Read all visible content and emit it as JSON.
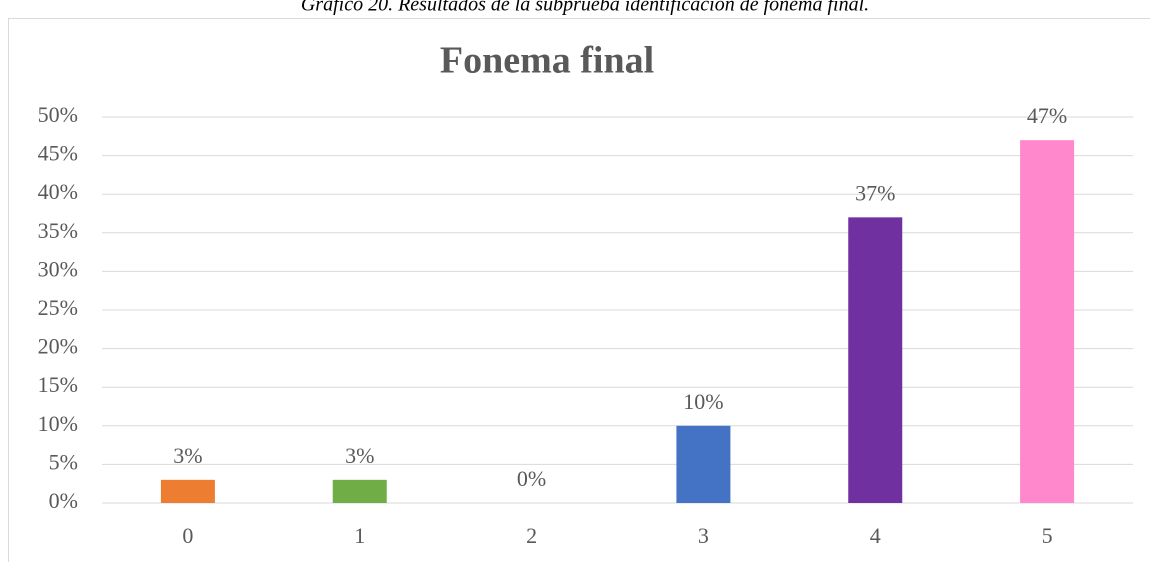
{
  "chart_data": {
    "type": "bar",
    "caption": "Gráfico 20. Resultados de la subprueba identificación de fonema final.",
    "title": "Fonema final",
    "categories": [
      "0",
      "1",
      "2",
      "3",
      "4",
      "5"
    ],
    "values": [
      3,
      3,
      0,
      10,
      37,
      47
    ],
    "value_labels": [
      "3%",
      "3%",
      "0%",
      "10%",
      "37%",
      "47%"
    ],
    "colors": [
      "#ed7d31",
      "#70ad47",
      "#a5a5a5",
      "#4472c4",
      "#7030a0",
      "#ff88cc"
    ],
    "ylim": [
      0,
      50
    ],
    "yticks": [
      {
        "value": 0,
        "label": "0%"
      },
      {
        "value": 5,
        "label": "5%"
      },
      {
        "value": 10,
        "label": "10%"
      },
      {
        "value": 15,
        "label": "15%"
      },
      {
        "value": 20,
        "label": "20%"
      },
      {
        "value": 25,
        "label": "25%"
      },
      {
        "value": 30,
        "label": "30%"
      },
      {
        "value": 35,
        "label": "35%"
      },
      {
        "value": 40,
        "label": "40%"
      },
      {
        "value": 45,
        "label": "45%"
      },
      {
        "value": 50,
        "label": "50%"
      }
    ],
    "grid": true
  }
}
